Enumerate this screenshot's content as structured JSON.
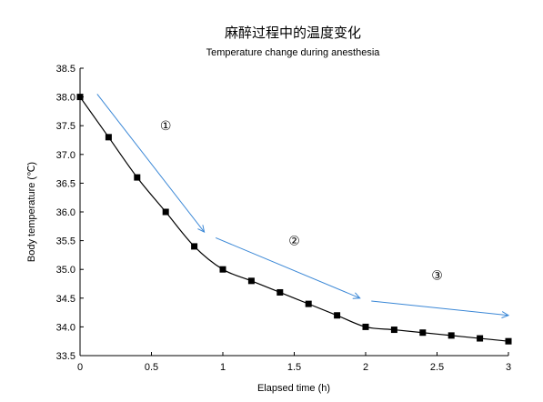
{
  "chart_data": {
    "type": "line",
    "title": "麻醉过程中的温度变化",
    "subtitle": "Temperature change during anesthesia",
    "xlabel": "Elapsed time (h)",
    "ylabel": "Body temperature (℃)",
    "xlim": [
      0,
      3
    ],
    "ylim": [
      33.5,
      38.5
    ],
    "x_ticks": [
      "0",
      "0.5",
      "1",
      "1.5",
      "2",
      "2.5",
      "3"
    ],
    "y_ticks": [
      "33.5",
      "34.0",
      "34.5",
      "35.0",
      "35.5",
      "36.0",
      "36.5",
      "37.0",
      "37.5",
      "38.0",
      "38.5"
    ],
    "grid": false,
    "series": [
      {
        "color": "#000000",
        "marker": "square",
        "x": [
          0,
          0.2,
          0.4,
          0.6,
          0.8,
          1.0,
          1.2,
          1.4,
          1.6,
          1.8,
          2.0,
          2.2,
          2.4,
          2.6,
          2.8,
          3.0
        ],
        "y": [
          38.0,
          37.3,
          36.6,
          36.0,
          35.4,
          35.0,
          34.8,
          34.6,
          34.4,
          34.2,
          34.0,
          33.95,
          33.9,
          33.85,
          33.8,
          33.75
        ]
      }
    ],
    "annotations": [
      {
        "label": "①",
        "color": "#3a87d6",
        "label_at": [
          0.6,
          37.5
        ],
        "arrow_from": [
          0.12,
          38.05
        ],
        "arrow_to": [
          0.87,
          35.65
        ]
      },
      {
        "label": "②",
        "color": "#3a87d6",
        "label_at": [
          1.5,
          35.5
        ],
        "arrow_from": [
          0.95,
          35.55
        ],
        "arrow_to": [
          1.96,
          34.5
        ]
      },
      {
        "label": "③",
        "color": "#3a87d6",
        "label_at": [
          2.5,
          34.9
        ],
        "arrow_from": [
          2.04,
          34.45
        ],
        "arrow_to": [
          3.0,
          34.2
        ]
      }
    ]
  }
}
